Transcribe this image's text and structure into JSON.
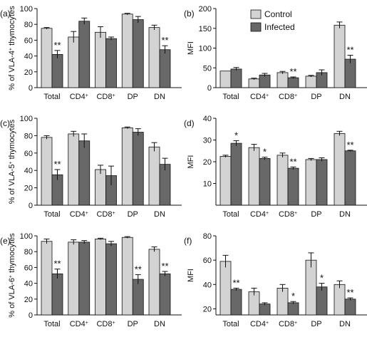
{
  "legend": {
    "placement": "top-right of panel (b)",
    "entries": [
      {
        "label": "Control",
        "color": "#d3d3d3"
      },
      {
        "label": "Infected",
        "color": "#686868"
      }
    ]
  },
  "colors": {
    "control": "#d3d3d3",
    "infected": "#686868",
    "axis": "#111111"
  },
  "chart_data": [
    {
      "panel": "(a)",
      "type": "bar",
      "ylabel_parts": [
        "% of VLA-4",
        "+",
        " thymocytes"
      ],
      "ylim": [
        0,
        100
      ],
      "yticks": [
        0,
        20,
        40,
        60,
        80,
        100
      ],
      "categories": [
        [
          "Total",
          ""
        ],
        [
          "CD4",
          "+"
        ],
        [
          "CD8",
          "+"
        ],
        [
          "DP",
          ""
        ],
        [
          "DN",
          ""
        ]
      ],
      "series": [
        {
          "name": "Control",
          "values": [
            75,
            64,
            70,
            93,
            76
          ],
          "errors": [
            1,
            7,
            7,
            1,
            3
          ]
        },
        {
          "name": "Infected",
          "values": [
            42,
            84,
            62,
            86,
            48
          ],
          "errors": [
            5,
            4,
            2,
            4,
            5
          ]
        }
      ],
      "annotations": [
        {
          "category": 0,
          "series": 1,
          "text": "**"
        },
        {
          "category": 4,
          "series": 1,
          "text": "**"
        }
      ]
    },
    {
      "panel": "(b)",
      "type": "bar",
      "ylabel_parts": [
        "MFI",
        "",
        ""
      ],
      "ylim": [
        0,
        200
      ],
      "yticks": [
        0,
        50,
        100,
        150,
        200
      ],
      "categories": [
        [
          "Total",
          ""
        ],
        [
          "CD4",
          "+"
        ],
        [
          "CD8",
          "+"
        ],
        [
          "DP",
          ""
        ],
        [
          "DN",
          ""
        ]
      ],
      "series": [
        {
          "name": "Control",
          "values": [
            42,
            22,
            38,
            29,
            158
          ],
          "errors": [
            0,
            2,
            3,
            2,
            8
          ]
        },
        {
          "name": "Infected",
          "values": [
            47,
            32,
            25,
            38,
            72
          ],
          "errors": [
            4,
            4,
            2,
            7,
            10
          ]
        }
      ],
      "annotations": [
        {
          "category": 2,
          "series": 1,
          "text": "**"
        },
        {
          "category": 4,
          "series": 1,
          "text": "**"
        }
      ]
    },
    {
      "panel": "(c)",
      "type": "bar",
      "ylabel_parts": [
        "% of VLA-5",
        "+",
        " thymocytes"
      ],
      "ylim": [
        0,
        100
      ],
      "yticks": [
        0,
        20,
        40,
        60,
        80,
        100
      ],
      "categories": [
        [
          "Total",
          ""
        ],
        [
          "CD4",
          "+"
        ],
        [
          "CD8",
          "+"
        ],
        [
          "DP",
          ""
        ],
        [
          "DN",
          ""
        ]
      ],
      "series": [
        {
          "name": "Control",
          "values": [
            78,
            82,
            41,
            89,
            67
          ],
          "errors": [
            2,
            3,
            5,
            1,
            5
          ]
        },
        {
          "name": "Infected",
          "values": [
            35,
            74,
            34,
            84,
            47
          ],
          "errors": [
            6,
            8,
            11,
            4,
            7
          ]
        }
      ],
      "annotations": [
        {
          "category": 0,
          "series": 1,
          "text": "**"
        }
      ]
    },
    {
      "panel": "(d)",
      "type": "bar",
      "ylabel_parts": [
        "MFI",
        "",
        ""
      ],
      "ylim": [
        0,
        40
      ],
      "yticks": [
        10,
        20,
        30,
        40
      ],
      "categories": [
        [
          "Total",
          ""
        ],
        [
          "CD4",
          "+"
        ],
        [
          "CD8",
          "+"
        ],
        [
          "DP",
          ""
        ],
        [
          "DN",
          ""
        ]
      ],
      "series": [
        {
          "name": "Control",
          "values": [
            22.5,
            26.5,
            23,
            21,
            33
          ],
          "errors": [
            0.5,
            1.5,
            1,
            0.5,
            1
          ]
        },
        {
          "name": "Infected",
          "values": [
            28.5,
            21.5,
            17,
            21,
            25
          ],
          "errors": [
            1.2,
            0.6,
            0.6,
            0.8,
            0.3
          ]
        }
      ],
      "annotations": [
        {
          "category": 0,
          "series": 1,
          "text": "*"
        },
        {
          "category": 1,
          "series": 1,
          "text": "*"
        },
        {
          "category": 2,
          "series": 1,
          "text": "**"
        },
        {
          "category": 4,
          "series": 1,
          "text": "**"
        }
      ]
    },
    {
      "panel": "(e)",
      "type": "bar",
      "ylabel_parts": [
        "% of VLA-6",
        "+",
        " thymocytes"
      ],
      "ylim": [
        0,
        100
      ],
      "yticks": [
        0,
        20,
        40,
        60,
        80,
        100
      ],
      "categories": [
        [
          "Total",
          ""
        ],
        [
          "CD4",
          "+"
        ],
        [
          "CD8",
          "+"
        ],
        [
          "DP",
          ""
        ],
        [
          "DN",
          ""
        ]
      ],
      "series": [
        {
          "name": "Control",
          "values": [
            93,
            92,
            96,
            98,
            83
          ],
          "errors": [
            3,
            3,
            1,
            1,
            3
          ]
        },
        {
          "name": "Infected",
          "values": [
            52,
            92,
            90,
            45,
            52
          ],
          "errors": [
            6,
            2,
            3,
            6,
            3
          ]
        }
      ],
      "annotations": [
        {
          "category": 0,
          "series": 1,
          "text": "**"
        },
        {
          "category": 3,
          "series": 1,
          "text": "**"
        },
        {
          "category": 4,
          "series": 1,
          "text": "**"
        }
      ]
    },
    {
      "panel": "(f)",
      "type": "bar",
      "ylabel_parts": [
        "MFI",
        "",
        ""
      ],
      "ylim": [
        15,
        80
      ],
      "yticks": [
        20,
        40,
        60,
        80
      ],
      "categories": [
        [
          "Total",
          ""
        ],
        [
          "CD4",
          "+"
        ],
        [
          "CD8",
          "+"
        ],
        [
          "DP",
          ""
        ],
        [
          "DN",
          ""
        ]
      ],
      "series": [
        {
          "name": "Control",
          "values": [
            59,
            34,
            37,
            60,
            40
          ],
          "errors": [
            5,
            3,
            3,
            6,
            3
          ]
        },
        {
          "name": "Infected",
          "values": [
            36,
            24,
            25,
            38,
            28
          ],
          "errors": [
            1,
            1,
            1,
            3,
            1
          ]
        }
      ],
      "annotations": [
        {
          "category": 0,
          "series": 1,
          "text": "**"
        },
        {
          "category": 2,
          "series": 1,
          "text": "*"
        },
        {
          "category": 3,
          "series": 1,
          "text": "*"
        },
        {
          "category": 4,
          "series": 1,
          "text": "**"
        }
      ]
    }
  ]
}
